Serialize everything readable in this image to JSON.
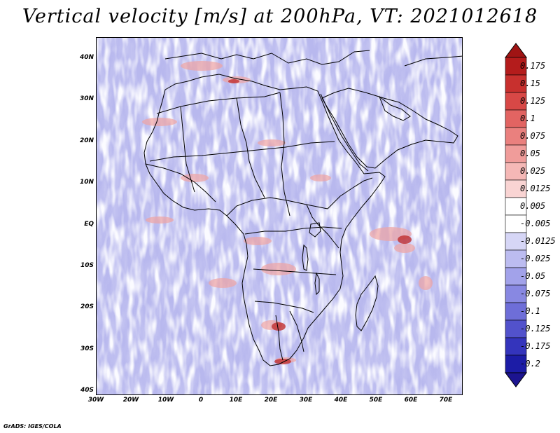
{
  "title": "Vertical velocity [m/s] at 200hPa, VT: 2021012618",
  "credit": "GrADS: IGES/COLA",
  "axes": {
    "lat_labels": [
      "40N",
      "30N",
      "20N",
      "10N",
      "EQ",
      "10S",
      "20S",
      "30S",
      "40S"
    ],
    "lon_labels": [
      "30W",
      "20W",
      "10W",
      "0",
      "10E",
      "20E",
      "30E",
      "40E",
      "50E",
      "60E",
      "70E"
    ]
  },
  "colorbar": {
    "labels": [
      "0.175",
      "0.15",
      "0.125",
      "0.1",
      "0.075",
      "0.05",
      "0.025",
      "0.0125",
      "0.005",
      "-0.005",
      "-0.0125",
      "-0.025",
      "-0.05",
      "-0.075",
      "-0.1",
      "-0.125",
      "-0.175",
      "-0.2"
    ],
    "colors": [
      "#b41c1c",
      "#c8302e",
      "#d84846",
      "#e26462",
      "#ea807e",
      "#f09c9a",
      "#f5b8b6",
      "#f9d4d3",
      "#ffffff",
      "#ffffff",
      "#d6d6f6",
      "#bcbcf0",
      "#a2a2ea",
      "#8888e2",
      "#6e6ed8",
      "#5252cc",
      "#3434bc",
      "#1c1ca6"
    ],
    "top_arrow_color": "#a01414",
    "bottom_arrow_color": "#1c1490"
  },
  "field_colors": {
    "background": "#b8b8ee",
    "blue_streak": "#8c8ce0",
    "white_streak": "#f2f2ff",
    "red_streak": "#f0a4a2",
    "dark_red": "#c03030",
    "coastline": "#000000"
  }
}
